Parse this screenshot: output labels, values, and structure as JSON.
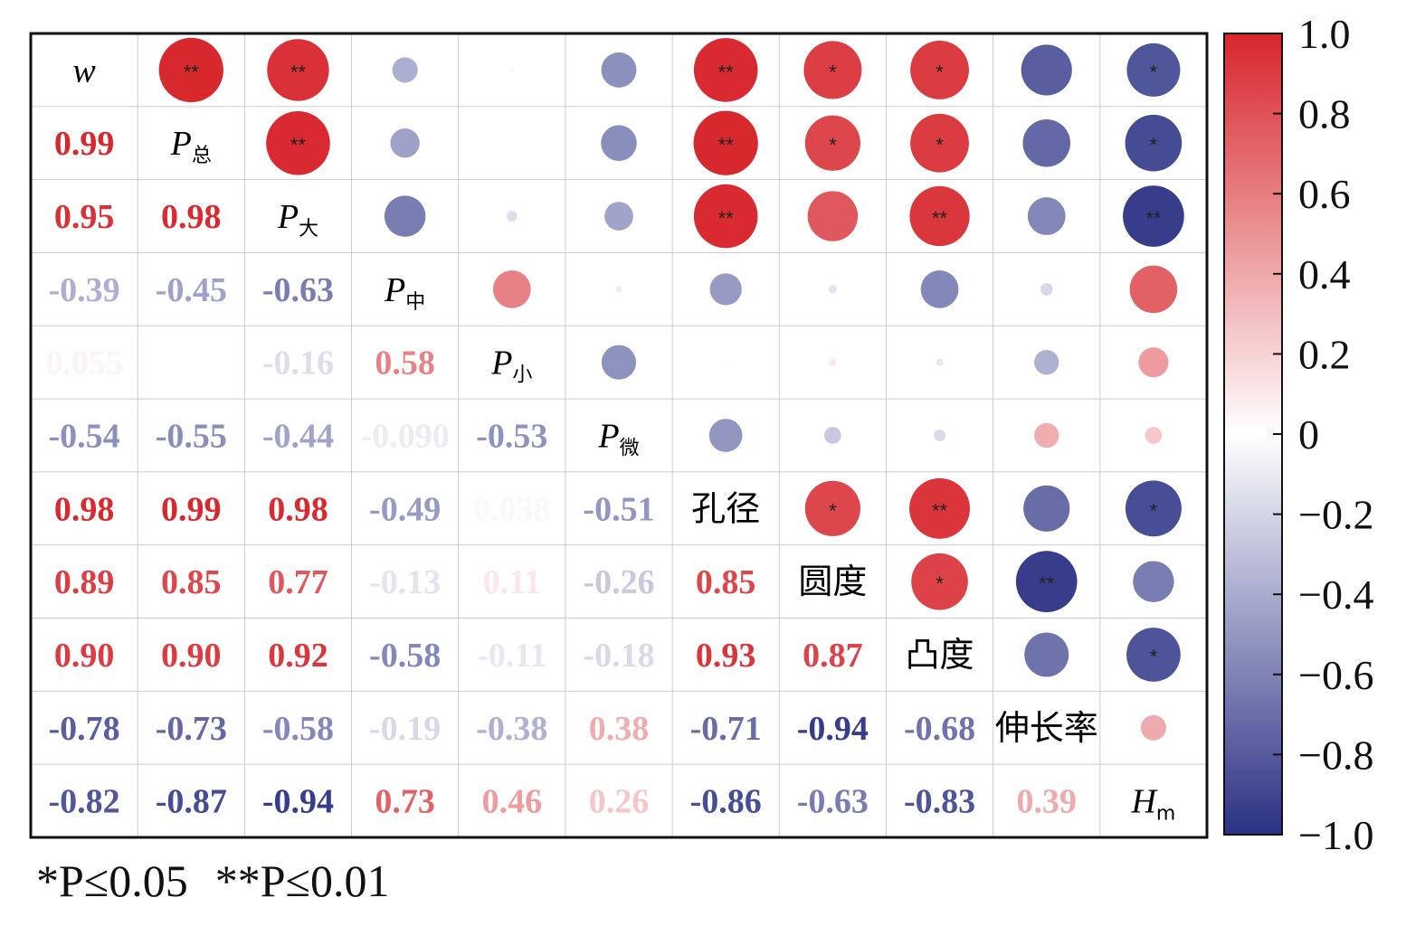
{
  "chart_data": {
    "type": "heatmap",
    "title": "",
    "variables": [
      {
        "main": "w",
        "sub": ""
      },
      {
        "main": "P",
        "sub": "总"
      },
      {
        "main": "P",
        "sub": "大"
      },
      {
        "main": "P",
        "sub": "中"
      },
      {
        "main": "P",
        "sub": "小"
      },
      {
        "main": "P",
        "sub": "微"
      },
      {
        "main": "孔径",
        "sub": ""
      },
      {
        "main": "圆度",
        "sub": ""
      },
      {
        "main": "凸度",
        "sub": ""
      },
      {
        "main": "伸长率",
        "sub": ""
      },
      {
        "main": "H",
        "sub": "m"
      }
    ],
    "italic_variables": [
      0,
      1,
      2,
      3,
      4,
      5,
      10
    ],
    "lower_triangle_labels": [
      [
        "0.99"
      ],
      [
        "0.95",
        "0.98"
      ],
      [
        "-0.39",
        "-0.45",
        "-0.63"
      ],
      [
        "0.055",
        "",
        "-0.16",
        "0.58"
      ],
      [
        "-0.54",
        "-0.55",
        "-0.44",
        "-0.090",
        "-0.53"
      ],
      [
        "0.98",
        "0.99",
        "0.98",
        "-0.49",
        "0.038",
        "-0.51"
      ],
      [
        "0.89",
        "0.85",
        "0.77",
        "-0.13",
        "0.11",
        "-0.26",
        "0.85"
      ],
      [
        "0.90",
        "0.90",
        "0.92",
        "-0.58",
        "-0.11",
        "-0.18",
        "0.93",
        "0.87"
      ],
      [
        "-0.78",
        "-0.73",
        "-0.58",
        "-0.19",
        "-0.38",
        "0.38",
        "-0.71",
        "-0.94",
        "-0.68"
      ],
      [
        "-0.82",
        "-0.87",
        "-0.94",
        "0.73",
        "0.46",
        "0.26",
        "-0.86",
        "-0.63",
        "-0.83",
        "0.39"
      ]
    ],
    "lower_triangle_values": [
      [
        0.99
      ],
      [
        0.95,
        0.98
      ],
      [
        -0.39,
        -0.45,
        -0.63
      ],
      [
        0.055,
        0.0,
        -0.16,
        0.58
      ],
      [
        -0.54,
        -0.55,
        -0.44,
        -0.09,
        -0.53
      ],
      [
        0.98,
        0.99,
        0.98,
        -0.49,
        0.038,
        -0.51
      ],
      [
        0.89,
        0.85,
        0.77,
        -0.13,
        0.11,
        -0.26,
        0.85
      ],
      [
        0.9,
        0.9,
        0.92,
        -0.58,
        -0.11,
        -0.18,
        0.93,
        0.87
      ],
      [
        -0.78,
        -0.73,
        -0.58,
        -0.19,
        -0.38,
        0.38,
        -0.71,
        -0.94,
        -0.68
      ],
      [
        -0.82,
        -0.87,
        -0.94,
        0.73,
        0.46,
        0.26,
        -0.86,
        -0.63,
        -0.83,
        0.39
      ]
    ],
    "significance_upper": [
      [
        "**",
        "**",
        "",
        "",
        "",
        "**",
        "*",
        "*",
        "",
        "*"
      ],
      [
        "**",
        "",
        "",
        "",
        "**",
        "*",
        "*",
        "",
        "*"
      ],
      [
        "",
        "",
        "",
        "**",
        "",
        "**",
        "",
        "**"
      ],
      [
        "",
        "",
        "",
        "",
        "",
        "",
        ""
      ],
      [
        "",
        "",
        "",
        "",
        "",
        ""
      ],
      [
        "",
        "",
        "",
        "",
        ""
      ],
      [
        "*",
        "**",
        "",
        "*"
      ],
      [
        "*",
        "**",
        ""
      ],
      [
        "",
        "*"
      ],
      [
        ""
      ]
    ],
    "colorbar": {
      "range": [
        -1.0,
        1.0
      ],
      "ticks": [
        "1.0",
        "0.8",
        "0.6",
        "0.4",
        "0.2",
        "0",
        "−0.2",
        "−0.4",
        "−0.6",
        "−0.8",
        "−1.0"
      ],
      "colors": {
        "positive": "#d7262c",
        "zero": "#ffffff",
        "negative": "#2a3184"
      }
    },
    "grid": true
  },
  "footnote": {
    "sig05": "*P≤0.05",
    "sig01": "**P≤0.01"
  }
}
